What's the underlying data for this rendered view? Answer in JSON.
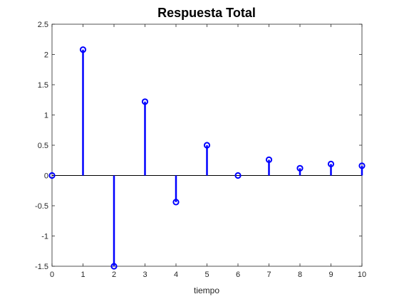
{
  "chart_data": {
    "type": "stem",
    "title": "Respuesta Total",
    "xlabel": "tiempo",
    "ylabel": "",
    "xlim": [
      0,
      10
    ],
    "ylim": [
      -1.5,
      2.5
    ],
    "xticks": [
      0,
      1,
      2,
      3,
      4,
      5,
      6,
      7,
      8,
      9,
      10
    ],
    "yticks": [
      -1.5,
      -1,
      -0.5,
      0,
      0.5,
      1,
      1.5,
      2,
      2.5
    ],
    "grid": false,
    "baseline": 0,
    "series": [
      {
        "x": [
          0,
          1,
          2,
          3,
          4,
          5,
          6,
          7,
          8,
          9,
          10
        ],
        "values": [
          0,
          2.08,
          -1.5,
          1.22,
          -0.44,
          0.5,
          0,
          0.26,
          0.12,
          0.19,
          0.16
        ],
        "color": "#0000ff",
        "marker": "circle-open"
      }
    ]
  }
}
